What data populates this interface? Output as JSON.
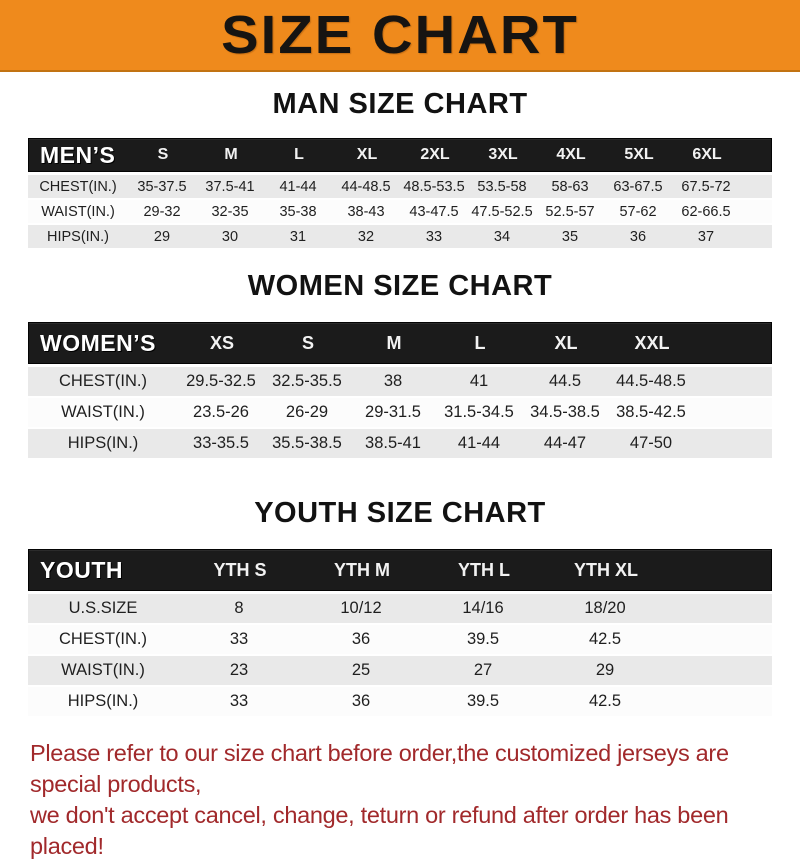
{
  "banner": {
    "title": "SIZE CHART",
    "bg_color": "#EF8A1C",
    "text_color": "#161412"
  },
  "colors": {
    "header_bar": "#1b1b1b",
    "row_gray": "#E9E9E9",
    "row_white": "#FCFCFC",
    "notice_red": "#A1292B"
  },
  "sections": {
    "man": {
      "title": "MAN SIZE CHART",
      "table": {
        "header_label": "MEN’S",
        "sizes": [
          "S",
          "M",
          "L",
          "XL",
          "2XL",
          "3XL",
          "4XL",
          "5XL",
          "6XL"
        ],
        "rows": [
          {
            "label": "CHEST(IN.)",
            "values": [
              "35-37.5",
              "37.5-41",
              "41-44",
              "44-48.5",
              "48.5-53.5",
              "53.5-58",
              "58-63",
              "63-67.5",
              "67.5-72"
            ]
          },
          {
            "label": "WAIST(IN.)",
            "values": [
              "29-32",
              "32-35",
              "35-38",
              "38-43",
              "43-47.5",
              "47.5-52.5",
              "52.5-57",
              "57-62",
              "62-66.5"
            ]
          },
          {
            "label": "HIPS(IN.)",
            "values": [
              "29",
              "30",
              "31",
              "32",
              "33",
              "34",
              "35",
              "36",
              "37"
            ]
          }
        ]
      }
    },
    "women": {
      "title": "WOMEN SIZE CHART",
      "table": {
        "header_label": "WOMEN’S",
        "sizes": [
          "XS",
          "S",
          "M",
          "L",
          "XL",
          "XXL"
        ],
        "rows": [
          {
            "label": "CHEST(IN.)",
            "values": [
              "29.5-32.5",
              "32.5-35.5",
              "38",
              "41",
              "44.5",
              "44.5-48.5"
            ]
          },
          {
            "label": "WAIST(IN.)",
            "values": [
              "23.5-26",
              "26-29",
              "29-31.5",
              "31.5-34.5",
              "34.5-38.5",
              "38.5-42.5"
            ]
          },
          {
            "label": "HIPS(IN.)",
            "values": [
              "33-35.5",
              "35.5-38.5",
              "38.5-41",
              "41-44",
              "44-47",
              "47-50"
            ]
          }
        ]
      }
    },
    "youth": {
      "title": "YOUTH SIZE CHART",
      "table": {
        "header_label": "YOUTH",
        "sizes": [
          "YTH S",
          "YTH M",
          "YTH L",
          "YTH XL"
        ],
        "rows": [
          {
            "label": "U.S.SIZE",
            "values": [
              "8",
              "10/12",
              "14/16",
              "18/20"
            ]
          },
          {
            "label": "CHEST(IN.)",
            "values": [
              "33",
              "36",
              "39.5",
              "42.5"
            ]
          },
          {
            "label": "WAIST(IN.)",
            "values": [
              "23",
              "25",
              "27",
              "29"
            ]
          },
          {
            "label": "HIPS(IN.)",
            "values": [
              "33",
              "36",
              "39.5",
              "42.5"
            ]
          }
        ]
      }
    }
  },
  "footer": {
    "line1": "Please refer to our size chart before order,the customized jerseys are special products,",
    "line2": "we don't accept cancel, change, teturn or refund after order has been placed!"
  }
}
